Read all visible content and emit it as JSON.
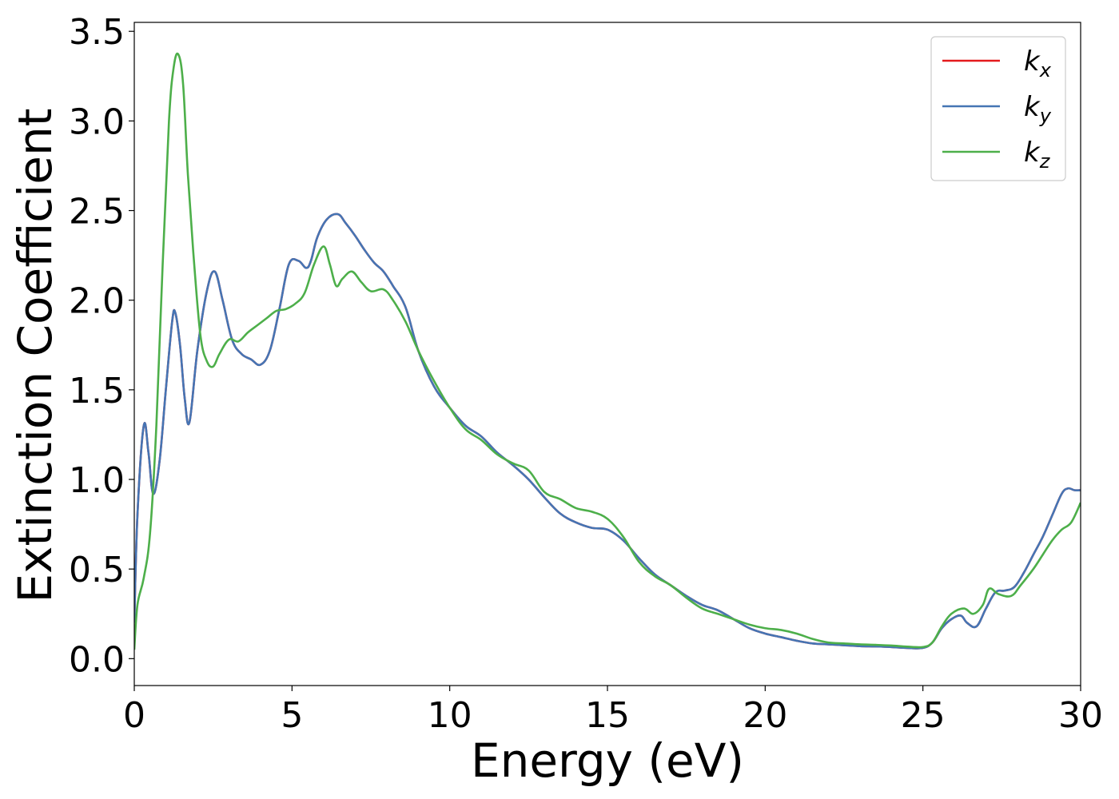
{
  "chart_data": {
    "type": "line",
    "xlabel": "Energy (eV)",
    "ylabel": "Extinction Coefficient",
    "xlim": [
      0,
      30
    ],
    "ylim": [
      -0.15,
      3.55
    ],
    "xticks": [
      0,
      5,
      10,
      15,
      20,
      25,
      30
    ],
    "xtick_labels": [
      "0",
      "5",
      "10",
      "15",
      "20",
      "25",
      "30"
    ],
    "yticks": [
      0.0,
      0.5,
      1.0,
      1.5,
      2.0,
      2.5,
      3.0,
      3.5
    ],
    "ytick_labels": [
      "0.0",
      "0.5",
      "1.0",
      "1.5",
      "2.0",
      "2.5",
      "3.0",
      "3.5"
    ],
    "grid": false,
    "legend_position": "top-right",
    "series": [
      {
        "name_base": "k",
        "name_sub": "x",
        "color": "#e41a1c",
        "x": [
          0,
          0.1,
          0.3,
          0.45,
          0.6,
          0.8,
          1.0,
          1.2,
          1.3,
          1.45,
          1.6,
          1.75,
          2.0,
          2.3,
          2.55,
          2.8,
          3.1,
          3.4,
          3.7,
          4.0,
          4.3,
          4.6,
          4.9,
          5.2,
          5.45,
          5.6,
          5.8,
          6.1,
          6.45,
          6.7,
          7.0,
          7.3,
          7.6,
          7.9,
          8.2,
          8.6,
          9.0,
          9.5,
          10.0,
          10.5,
          11.0,
          11.5,
          12.0,
          12.5,
          13.0,
          13.5,
          14.0,
          14.5,
          15.0,
          15.5,
          16.0,
          16.5,
          17.0,
          17.5,
          18.0,
          18.5,
          19.0,
          19.5,
          20.0,
          20.5,
          21.0,
          21.5,
          22.0,
          22.5,
          23.0,
          23.5,
          24.0,
          24.5,
          25.0,
          25.3,
          25.6,
          25.9,
          26.2,
          26.4,
          26.7,
          27.0,
          27.3,
          27.6,
          27.9,
          28.2,
          28.5,
          28.8,
          29.1,
          29.4,
          29.6,
          29.8,
          30.0
        ],
        "y": [
          0.2,
          0.8,
          1.3,
          1.15,
          0.92,
          1.1,
          1.5,
          1.88,
          1.93,
          1.75,
          1.45,
          1.32,
          1.72,
          2.05,
          2.16,
          2.0,
          1.78,
          1.7,
          1.67,
          1.64,
          1.72,
          1.95,
          2.2,
          2.22,
          2.18,
          2.22,
          2.35,
          2.45,
          2.48,
          2.43,
          2.36,
          2.28,
          2.21,
          2.16,
          2.08,
          1.96,
          1.72,
          1.52,
          1.4,
          1.3,
          1.24,
          1.15,
          1.08,
          1.0,
          0.9,
          0.81,
          0.76,
          0.73,
          0.72,
          0.66,
          0.56,
          0.47,
          0.41,
          0.35,
          0.3,
          0.27,
          0.22,
          0.17,
          0.14,
          0.12,
          0.1,
          0.085,
          0.08,
          0.075,
          0.07,
          0.068,
          0.065,
          0.06,
          0.06,
          0.09,
          0.17,
          0.22,
          0.24,
          0.2,
          0.18,
          0.28,
          0.37,
          0.38,
          0.4,
          0.48,
          0.58,
          0.68,
          0.8,
          0.92,
          0.95,
          0.94,
          0.94
        ]
      },
      {
        "name_base": "k",
        "name_sub": "y",
        "color": "#4575b4",
        "x": [
          0,
          0.1,
          0.3,
          0.45,
          0.6,
          0.8,
          1.0,
          1.2,
          1.3,
          1.45,
          1.6,
          1.75,
          2.0,
          2.3,
          2.55,
          2.8,
          3.1,
          3.4,
          3.7,
          4.0,
          4.3,
          4.6,
          4.9,
          5.2,
          5.45,
          5.6,
          5.8,
          6.1,
          6.45,
          6.7,
          7.0,
          7.3,
          7.6,
          7.9,
          8.2,
          8.6,
          9.0,
          9.5,
          10.0,
          10.5,
          11.0,
          11.5,
          12.0,
          12.5,
          13.0,
          13.5,
          14.0,
          14.5,
          15.0,
          15.5,
          16.0,
          16.5,
          17.0,
          17.5,
          18.0,
          18.5,
          19.0,
          19.5,
          20.0,
          20.5,
          21.0,
          21.5,
          22.0,
          22.5,
          23.0,
          23.5,
          24.0,
          24.5,
          25.0,
          25.3,
          25.6,
          25.9,
          26.2,
          26.4,
          26.7,
          27.0,
          27.3,
          27.6,
          27.9,
          28.2,
          28.5,
          28.8,
          29.1,
          29.4,
          29.6,
          29.8,
          30.0
        ],
        "y": [
          0.2,
          0.8,
          1.3,
          1.15,
          0.92,
          1.1,
          1.5,
          1.88,
          1.93,
          1.75,
          1.45,
          1.32,
          1.72,
          2.05,
          2.16,
          2.0,
          1.78,
          1.7,
          1.67,
          1.64,
          1.72,
          1.95,
          2.2,
          2.22,
          2.18,
          2.22,
          2.35,
          2.45,
          2.48,
          2.43,
          2.36,
          2.28,
          2.21,
          2.16,
          2.08,
          1.96,
          1.72,
          1.52,
          1.4,
          1.3,
          1.24,
          1.15,
          1.08,
          1.0,
          0.9,
          0.81,
          0.76,
          0.73,
          0.72,
          0.66,
          0.56,
          0.47,
          0.41,
          0.35,
          0.3,
          0.27,
          0.22,
          0.17,
          0.14,
          0.12,
          0.1,
          0.085,
          0.08,
          0.075,
          0.07,
          0.068,
          0.065,
          0.06,
          0.06,
          0.09,
          0.17,
          0.22,
          0.24,
          0.2,
          0.18,
          0.28,
          0.37,
          0.38,
          0.4,
          0.48,
          0.58,
          0.68,
          0.8,
          0.92,
          0.95,
          0.94,
          0.94
        ]
      },
      {
        "name_base": "k",
        "name_sub": "z",
        "color": "#4daf4a",
        "x": [
          0,
          0.1,
          0.3,
          0.5,
          0.7,
          0.9,
          1.1,
          1.25,
          1.4,
          1.55,
          1.7,
          1.9,
          2.1,
          2.3,
          2.5,
          2.7,
          3.0,
          3.3,
          3.6,
          3.9,
          4.2,
          4.5,
          4.8,
          5.1,
          5.4,
          5.7,
          6.0,
          6.2,
          6.4,
          6.6,
          6.9,
          7.2,
          7.5,
          7.9,
          8.2,
          8.6,
          9.0,
          9.5,
          10.0,
          10.5,
          11.0,
          11.5,
          12.0,
          12.5,
          13.0,
          13.5,
          14.0,
          14.5,
          15.0,
          15.5,
          16.0,
          16.5,
          17.0,
          17.5,
          18.0,
          18.5,
          19.0,
          19.5,
          20.0,
          20.5,
          21.0,
          21.5,
          22.0,
          22.5,
          23.0,
          23.5,
          24.0,
          24.5,
          25.0,
          25.3,
          25.6,
          25.9,
          26.3,
          26.6,
          26.9,
          27.1,
          27.4,
          27.8,
          28.1,
          28.5,
          28.8,
          29.1,
          29.4,
          29.7,
          30.0
        ],
        "y": [
          0.05,
          0.3,
          0.45,
          0.7,
          1.3,
          2.2,
          3.0,
          3.3,
          3.37,
          3.2,
          2.7,
          2.2,
          1.8,
          1.66,
          1.63,
          1.7,
          1.78,
          1.77,
          1.82,
          1.86,
          1.9,
          1.94,
          1.95,
          1.98,
          2.04,
          2.2,
          2.3,
          2.2,
          2.08,
          2.12,
          2.16,
          2.1,
          2.05,
          2.06,
          2.0,
          1.88,
          1.72,
          1.55,
          1.4,
          1.28,
          1.22,
          1.14,
          1.09,
          1.05,
          0.93,
          0.89,
          0.84,
          0.82,
          0.78,
          0.68,
          0.54,
          0.46,
          0.41,
          0.34,
          0.28,
          0.25,
          0.22,
          0.19,
          0.17,
          0.16,
          0.14,
          0.11,
          0.09,
          0.085,
          0.08,
          0.077,
          0.073,
          0.067,
          0.065,
          0.09,
          0.18,
          0.25,
          0.28,
          0.25,
          0.3,
          0.39,
          0.36,
          0.35,
          0.41,
          0.5,
          0.58,
          0.66,
          0.72,
          0.76,
          0.87
        ]
      }
    ]
  }
}
